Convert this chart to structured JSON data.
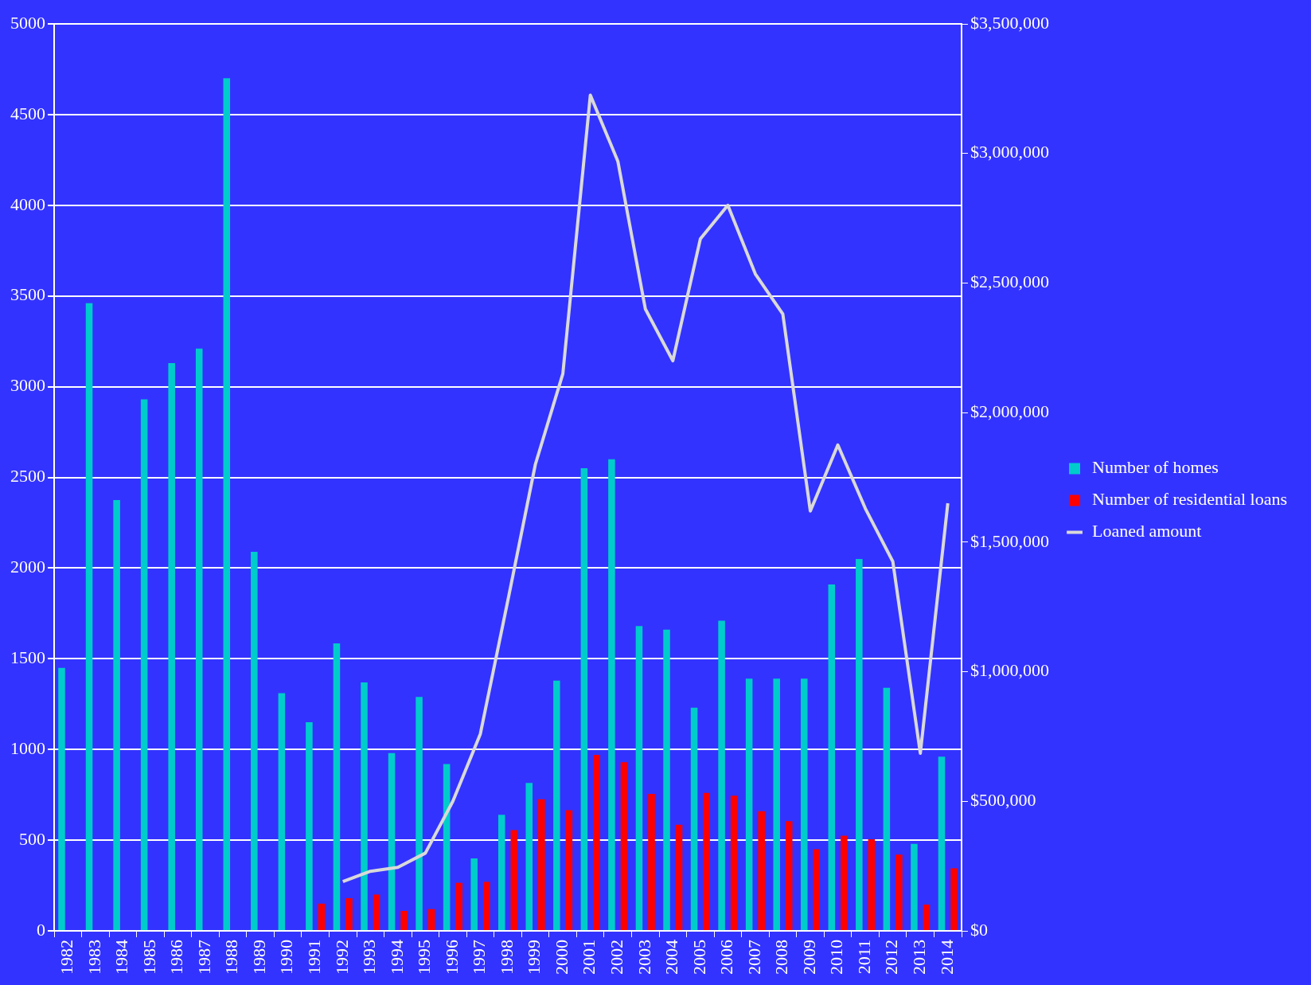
{
  "chart_data": {
    "type": "bar",
    "categories": [
      "1982",
      "1983",
      "1984",
      "1985",
      "1986",
      "1987",
      "1988",
      "1989",
      "1990",
      "1991",
      "1992",
      "1993",
      "1994",
      "1995",
      "1996",
      "1997",
      "1998",
      "1999",
      "2000",
      "2001",
      "2002",
      "2003",
      "2004",
      "2005",
      "2006",
      "2007",
      "2008",
      "2009",
      "2010",
      "2011",
      "2012",
      "2013",
      "2014"
    ],
    "series": [
      {
        "name": "Number of homes",
        "color": "#00cccc",
        "values": [
          1450,
          3460,
          2375,
          2930,
          3130,
          3210,
          4700,
          2090,
          1310,
          1150,
          1585,
          1370,
          980,
          1290,
          920,
          400,
          640,
          815,
          1380,
          2550,
          2600,
          1680,
          1660,
          1230,
          1710,
          1390,
          1390,
          1390,
          1910,
          2050,
          1340,
          480,
          960
        ]
      },
      {
        "name": "Number of residential loans",
        "color": "#ff0000",
        "values": [
          null,
          null,
          null,
          null,
          null,
          null,
          null,
          null,
          null,
          150,
          180,
          200,
          110,
          120,
          265,
          270,
          555,
          725,
          665,
          970,
          930,
          755,
          585,
          760,
          745,
          660,
          605,
          450,
          525,
          505,
          420,
          145,
          345
        ]
      },
      {
        "name": "Loaned amount",
        "type": "line",
        "axis": "y2",
        "color": "#d9d9d9",
        "values": [
          null,
          null,
          null,
          null,
          null,
          null,
          null,
          null,
          null,
          null,
          190000,
          230000,
          245000,
          300000,
          500000,
          760000,
          1275000,
          1800000,
          2150000,
          3225000,
          2970000,
          2400000,
          2200000,
          2670000,
          2800000,
          2535000,
          2380000,
          1620000,
          1875000,
          1630000,
          1425000,
          685000,
          1650000
        ]
      }
    ],
    "ylim": [
      0,
      5000
    ],
    "yticks": [
      0,
      500,
      1000,
      1500,
      2000,
      2500,
      3000,
      3500,
      4000,
      4500,
      5000
    ],
    "y2lim": [
      0,
      3500000
    ],
    "y2ticks": [
      {
        "value": 0,
        "label": "$0"
      },
      {
        "value": 500000,
        "label": "$500,000"
      },
      {
        "value": 1000000,
        "label": "$1,000,000"
      },
      {
        "value": 1500000,
        "label": "$1,500,000"
      },
      {
        "value": 2000000,
        "label": "$2,000,000"
      },
      {
        "value": 2500000,
        "label": "$2,500,000"
      },
      {
        "value": 3000000,
        "label": "$3,000,000"
      },
      {
        "value": 3500000,
        "label": "$3,500,000"
      }
    ],
    "grid": "y",
    "legend": "right",
    "marker": "none",
    "line_style": "solid"
  }
}
